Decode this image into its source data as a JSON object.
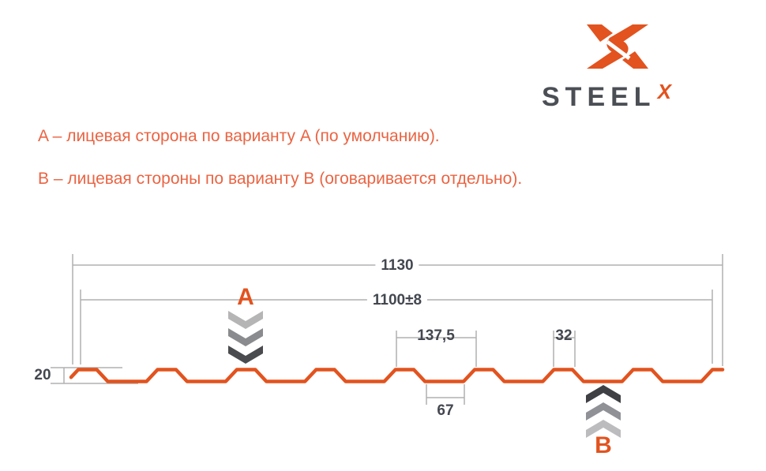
{
  "logo": {
    "brand": "STEEL",
    "brand_suffix": "X",
    "orange": "#E2531F",
    "dark_gray": "#4B4F55"
  },
  "notes": {
    "line_a": "A – лицевая сторона по варианту A (по умолчанию).",
    "line_b": "B – лицевая стороны по варианту B (оговаривается отдельно)."
  },
  "diagram": {
    "dimensions": {
      "total_width": "1130",
      "working_width": "1100±8",
      "pitch": "137,5",
      "rib_top_width": "32",
      "profile_height": "20",
      "rib_bottom_width": "67"
    },
    "side_labels": {
      "a": "A",
      "b": "B"
    },
    "profile_mm": {
      "total": 1130,
      "pitch": 137.5,
      "crest": 32,
      "valley": 67,
      "height": 20
    },
    "colors": {
      "profile": "#E2531F",
      "dim_line": "#B0B0B0",
      "dim_text": "#43474F",
      "accent_text": "#EA6443",
      "chevrons_a": [
        "#B5B5B6",
        "#8A8B8E",
        "#4A4B4E"
      ],
      "chevrons_b": [
        "#3F4044",
        "#909196",
        "#BCBCBE"
      ]
    }
  }
}
